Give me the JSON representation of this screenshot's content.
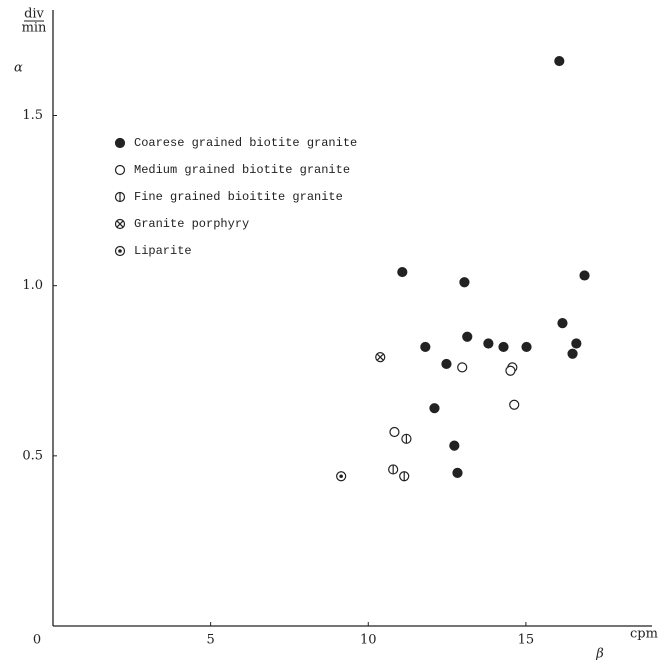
{
  "chart_data": {
    "type": "scatter",
    "y_label": "α",
    "y_unit_numerator": "div",
    "y_unit_denominator": "min",
    "x_label": "β",
    "x_unit": "cpm",
    "xlim": [
      0,
      19
    ],
    "ylim": [
      0,
      1.81
    ],
    "xticks": [
      0,
      5,
      10,
      15
    ],
    "yticks": [
      0.5,
      {
        "value": 1,
        "label": "1.0"
      },
      1.5
    ],
    "grid": false,
    "legend": "upper left",
    "series": [
      {
        "name": "Coarese grained biotite granite",
        "color": "#222",
        "marker": "filled",
        "x": [
          16.06,
          11.08,
          13.05,
          16.86,
          13.14,
          11.81,
          13.81,
          14.29,
          15.02,
          16.16,
          16.6,
          16.48,
          12.48,
          12.1,
          12.73,
          12.83
        ],
        "y": [
          1.66,
          1.04,
          1.01,
          1.03,
          0.85,
          0.82,
          0.83,
          0.82,
          0.82,
          0.89,
          0.83,
          0.8,
          0.77,
          0.64,
          0.53,
          0.45
        ]
      },
      {
        "name": "Medium grained biotite granite",
        "color": "#222",
        "marker": "open",
        "x": [
          12.98,
          14.57,
          14.51,
          14.63,
          10.83
        ],
        "y": [
          0.76,
          0.76,
          0.75,
          0.65,
          0.57
        ]
      },
      {
        "name": "Fine grained bioitite granite",
        "color": "#222",
        "marker": "bar",
        "x": [
          11.21,
          10.79,
          11.14
        ],
        "y": [
          0.55,
          0.46,
          0.44
        ]
      },
      {
        "name": "Granite porphyry",
        "color": "#222",
        "marker": "cross",
        "x": [
          10.38
        ],
        "y": [
          0.79
        ]
      },
      {
        "name": "Liparite",
        "color": "#222",
        "marker": "dot",
        "x": [
          9.14
        ],
        "y": [
          0.44
        ]
      }
    ]
  }
}
